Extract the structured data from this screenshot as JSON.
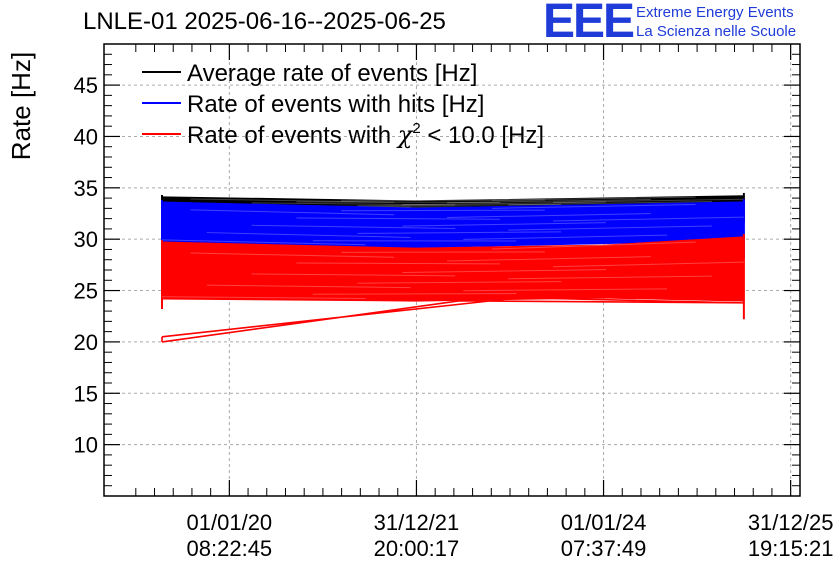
{
  "header": {
    "title": "LNLE-01 2025-06-16--2025-06-25",
    "logo_mark": "EEE",
    "logo_line1": "Extreme Energy Events",
    "logo_line2": "La Scienza nelle Scuole"
  },
  "chart_data": {
    "type": "line",
    "title": "LNLE-01 2025-06-16--2025-06-25",
    "ylabel": "Rate [Hz]",
    "xlabel": "",
    "ylim": [
      5,
      49
    ],
    "xlim": [
      0,
      3.72
    ],
    "yticks": [
      10,
      15,
      20,
      25,
      30,
      35,
      40,
      45
    ],
    "grid": true,
    "legend_position": "top-left",
    "xticks": [
      {
        "pos": 0.67,
        "line1": "01/01/20",
        "line2": "08:22:45"
      },
      {
        "pos": 1.67,
        "line1": "31/12/21",
        "line2": "20:00:17"
      },
      {
        "pos": 2.67,
        "line1": "01/01/24",
        "line2": "07:37:49"
      },
      {
        "pos": 3.67,
        "line1": "31/12/25",
        "line2": "19:15:21"
      }
    ],
    "series": [
      {
        "name": "Average rate of events [Hz]",
        "color": "#000000",
        "band_x": [
          0.31,
          1.67,
          3.42
        ],
        "band_top": [
          34.1,
          33.7,
          34.2
        ],
        "band_bottom": [
          33.3,
          32.9,
          33.4
        ]
      },
      {
        "name": "Rate of events with hits [Hz]",
        "color": "#0000ff",
        "band_x": [
          0.31,
          1.67,
          3.42
        ],
        "band_top": [
          33.6,
          33.0,
          33.6
        ],
        "band_bottom": [
          29.8,
          29.2,
          29.9
        ]
      },
      {
        "name": "Rate of events with χ² < 10.0 [Hz]",
        "color": "#ff0000",
        "band_x": [
          0.31,
          1.67,
          2.67,
          3.42
        ],
        "band_top": [
          29.7,
          29.1,
          29.4,
          30.2
        ],
        "band_bottom": [
          24.2,
          24.0,
          24.3,
          24.0
        ],
        "outlier_trace": {
          "x": [
            0.31,
            2.22,
            3.42,
            1.9,
            0.31
          ],
          "y": [
            20.5,
            24.3,
            23.8,
            24.0,
            20.0
          ]
        }
      }
    ],
    "legend_labels": {
      "avg": "Average rate of events [Hz]",
      "hits": "Rate of events with hits [Hz]",
      "chi_prefix": "Rate of events with ",
      "chi_symbol": "χ",
      "chi_sup": "2",
      "chi_suffix": " < 10.0 [Hz]"
    }
  }
}
